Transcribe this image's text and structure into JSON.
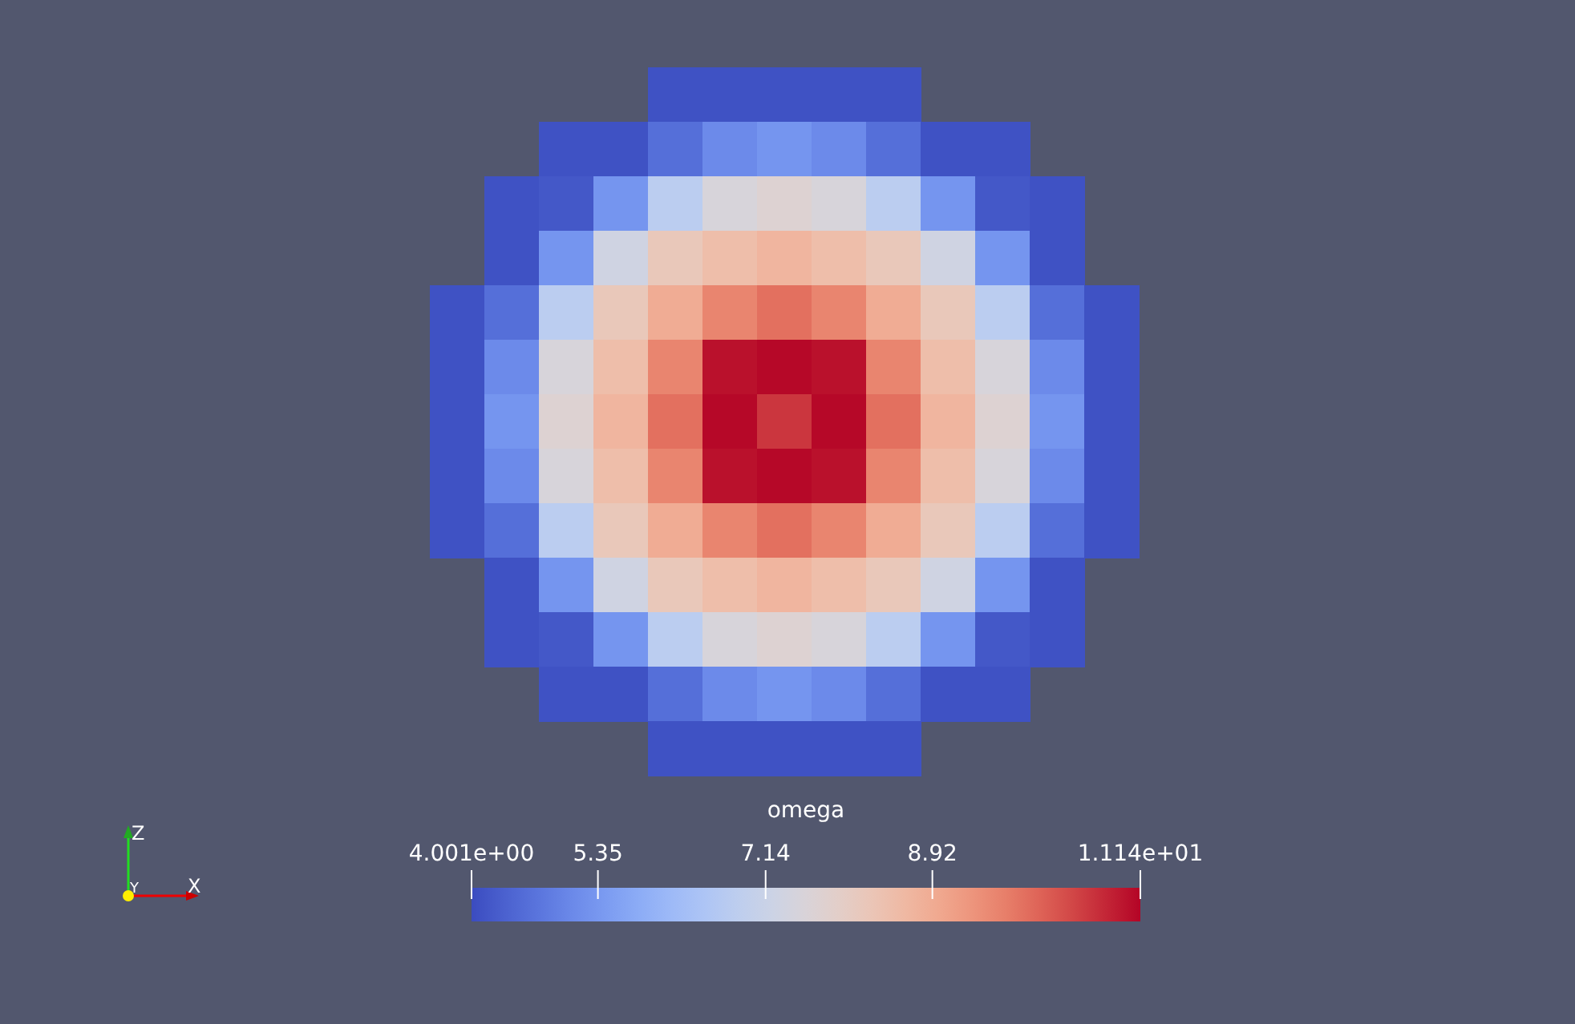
{
  "chart_data": {
    "type": "heatmap",
    "clabel": "omega",
    "categories": [
      null,
      null,
      null,
      null,
      null,
      null,
      null,
      null,
      null,
      null,
      null,
      null,
      null
    ],
    "y_categories": [
      null,
      null,
      null,
      null,
      null,
      null,
      null,
      null,
      null,
      null,
      null,
      null,
      null
    ],
    "cells": [
      [
        null,
        null,
        null,
        null,
        4.1,
        4.1,
        4.1,
        4.1,
        4.1,
        null,
        null,
        null,
        null
      ],
      [
        null,
        null,
        4.1,
        4.1,
        4.6,
        5.1,
        5.3,
        5.1,
        4.6,
        4.1,
        4.1,
        null,
        null
      ],
      [
        null,
        4.1,
        4.2,
        5.3,
        6.8,
        7.5,
        7.7,
        7.5,
        6.8,
        5.3,
        4.2,
        4.1,
        null
      ],
      [
        null,
        4.1,
        5.3,
        7.3,
        8.2,
        8.5,
        8.7,
        8.5,
        8.2,
        7.3,
        5.3,
        4.1,
        null
      ],
      [
        4.1,
        4.6,
        6.8,
        8.2,
        8.9,
        9.6,
        9.9,
        9.6,
        8.9,
        8.2,
        6.8,
        4.6,
        4.1
      ],
      [
        4.1,
        5.1,
        7.5,
        8.5,
        9.6,
        11.0,
        11.1,
        11.0,
        9.6,
        8.5,
        7.5,
        5.1,
        4.1
      ],
      [
        4.1,
        5.3,
        7.7,
        8.7,
        9.9,
        11.1,
        10.6,
        11.1,
        9.9,
        8.7,
        7.7,
        5.3,
        4.1
      ],
      [
        4.1,
        5.1,
        7.5,
        8.5,
        9.6,
        11.0,
        11.1,
        11.0,
        9.6,
        8.5,
        7.5,
        5.1,
        4.1
      ],
      [
        4.1,
        4.6,
        6.8,
        8.2,
        8.9,
        9.6,
        9.9,
        9.6,
        8.9,
        8.2,
        6.8,
        4.6,
        4.1
      ],
      [
        null,
        4.1,
        5.3,
        7.3,
        8.2,
        8.5,
        8.7,
        8.5,
        8.2,
        7.3,
        5.3,
        4.1,
        null
      ],
      [
        null,
        4.1,
        4.2,
        5.3,
        6.8,
        7.5,
        7.7,
        7.5,
        6.8,
        5.3,
        4.2,
        4.1,
        null
      ],
      [
        null,
        null,
        4.1,
        4.1,
        4.6,
        5.1,
        5.3,
        5.1,
        4.6,
        4.1,
        4.1,
        null,
        null
      ],
      [
        null,
        null,
        null,
        null,
        4.1,
        4.1,
        4.1,
        4.1,
        4.1,
        null,
        null,
        null,
        null
      ]
    ],
    "clim": [
      4.001,
      11.14
    ],
    "cticks": [
      {
        "value": 4.001,
        "label": "4.001e+00"
      },
      5.35,
      7.14,
      8.92,
      {
        "value": 11.14,
        "label": "1.114e+01"
      }
    ],
    "annotations": [
      "Z",
      "Y",
      "X"
    ]
  }
}
